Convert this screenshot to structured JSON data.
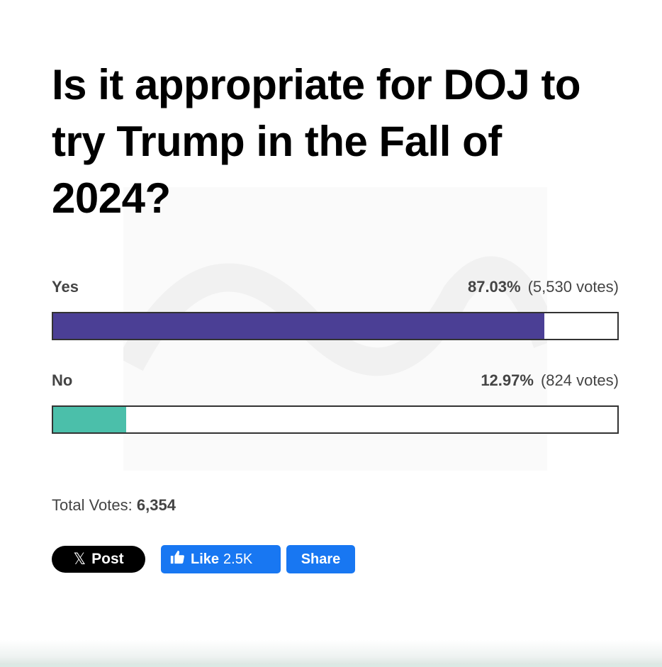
{
  "poll": {
    "question": "Is it appropriate for DOJ to try Trump in the Fall of 2024?",
    "answers": [
      {
        "label": "Yes",
        "percent_text": "87.03%",
        "votes_text": "(5,530 votes)",
        "percent": 87.03,
        "color": "#4b3f95"
      },
      {
        "label": "No",
        "percent_text": "12.97%",
        "votes_text": "(824 votes)",
        "percent": 12.97,
        "color": "#4bbfaa"
      }
    ],
    "total_label": "Total Votes:",
    "total_value": "6,354"
  },
  "share": {
    "x_glyph": "𝕏",
    "x_label": "Post",
    "like_icon": "thumbs-up-icon",
    "like_label": "Like",
    "like_count": "2.5K",
    "share_label": "Share"
  },
  "colors": {
    "facebook_blue": "#1877f2",
    "bar_border": "#333333"
  }
}
